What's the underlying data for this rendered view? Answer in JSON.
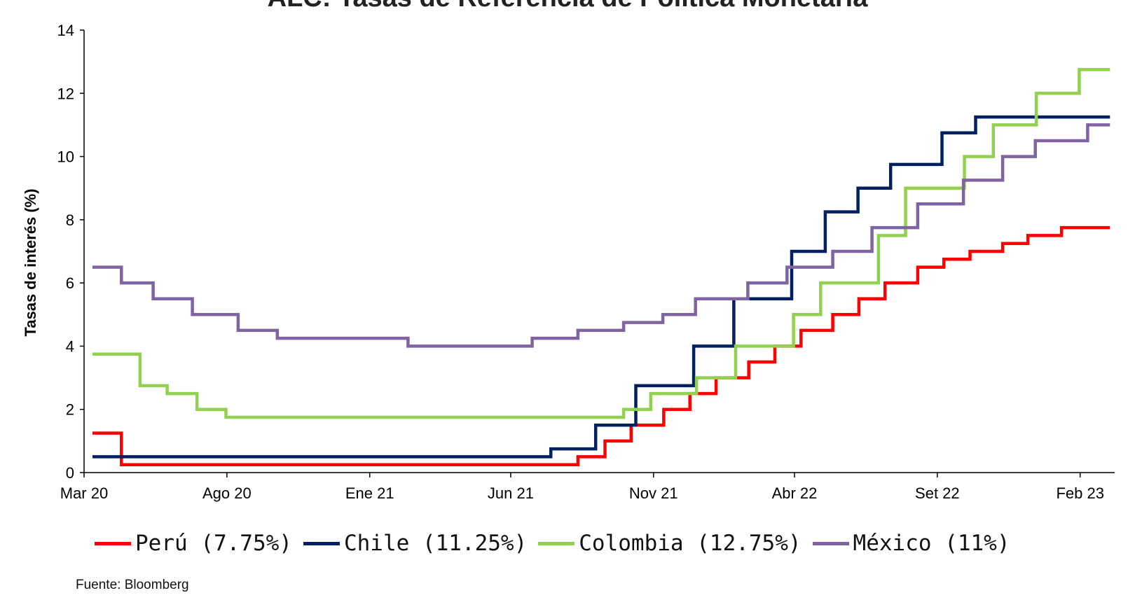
{
  "chart_data": {
    "type": "line",
    "title": "ALC: Tasas de Referencia de Política Monetaria",
    "ylabel": "Tasas de interés (%)",
    "xlabel": "",
    "ylim": [
      0,
      14
    ],
    "yticks": [
      0,
      2,
      4,
      6,
      8,
      10,
      12,
      14
    ],
    "xlim": [
      "2020-03-01",
      "2023-03-10"
    ],
    "xticks": [
      {
        "label": "Mar 20",
        "date": "2020-03-01"
      },
      {
        "label": "Ago 20",
        "date": "2020-08-01"
      },
      {
        "label": "Ene 21",
        "date": "2021-01-01"
      },
      {
        "label": "Jun 21",
        "date": "2021-06-01"
      },
      {
        "label": "Nov 21",
        "date": "2021-11-01"
      },
      {
        "label": "Abr 22",
        "date": "2022-04-01"
      },
      {
        "label": "Set 22",
        "date": "2022-09-01"
      },
      {
        "label": "Feb 23",
        "date": "2023-02-01"
      }
    ],
    "step": true,
    "grid": false,
    "legend_position": "bottom",
    "series": [
      {
        "name": "Perú (7.75%)",
        "color": "#ff0000",
        "points": [
          [
            "2020-03-10",
            1.25
          ],
          [
            "2020-04-10",
            0.25
          ],
          [
            "2021-08-12",
            0.5
          ],
          [
            "2021-09-10",
            1.0
          ],
          [
            "2021-10-08",
            1.5
          ],
          [
            "2021-11-12",
            2.0
          ],
          [
            "2021-12-10",
            2.5
          ],
          [
            "2022-01-07",
            3.0
          ],
          [
            "2022-02-11",
            3.5
          ],
          [
            "2022-03-11",
            4.0
          ],
          [
            "2022-04-08",
            4.5
          ],
          [
            "2022-05-12",
            5.0
          ],
          [
            "2022-06-09",
            5.5
          ],
          [
            "2022-07-07",
            6.0
          ],
          [
            "2022-08-11",
            6.5
          ],
          [
            "2022-09-08",
            6.75
          ],
          [
            "2022-10-06",
            7.0
          ],
          [
            "2022-11-10",
            7.25
          ],
          [
            "2022-12-07",
            7.5
          ],
          [
            "2023-01-12",
            7.75
          ],
          [
            "2023-03-05",
            7.75
          ]
        ]
      },
      {
        "name": "Chile (11.25%)",
        "color": "#002060",
        "points": [
          [
            "2020-03-10",
            0.5
          ],
          [
            "2021-07-14",
            0.75
          ],
          [
            "2021-08-31",
            1.5
          ],
          [
            "2021-10-13",
            2.75
          ],
          [
            "2021-12-14",
            4.0
          ],
          [
            "2022-01-26",
            5.5
          ],
          [
            "2022-03-29",
            7.0
          ],
          [
            "2022-05-04",
            8.25
          ],
          [
            "2022-06-08",
            9.0
          ],
          [
            "2022-07-13",
            9.75
          ],
          [
            "2022-09-06",
            10.75
          ],
          [
            "2022-10-12",
            11.25
          ],
          [
            "2023-03-05",
            11.25
          ]
        ]
      },
      {
        "name": "Colombia (12.75%)",
        "color": "#92d050",
        "points": [
          [
            "2020-03-10",
            3.75
          ],
          [
            "2020-04-30",
            2.75
          ],
          [
            "2020-05-29",
            2.5
          ],
          [
            "2020-06-30",
            2.25
          ],
          [
            "2020-06-30",
            2.0
          ],
          [
            "2020-07-31",
            1.75
          ],
          [
            "2021-09-30",
            2.0
          ],
          [
            "2021-10-29",
            2.5
          ],
          [
            "2021-12-17",
            3.0
          ],
          [
            "2022-01-28",
            4.0
          ],
          [
            "2022-03-31",
            5.0
          ],
          [
            "2022-04-29",
            6.0
          ],
          [
            "2022-06-30",
            7.5
          ],
          [
            "2022-07-29",
            9.0
          ],
          [
            "2022-09-30",
            10.0
          ],
          [
            "2022-10-31",
            11.0
          ],
          [
            "2022-12-16",
            12.0
          ],
          [
            "2023-01-31",
            12.75
          ],
          [
            "2023-03-05",
            12.75
          ]
        ]
      },
      {
        "name": "México (11%)",
        "color": "#8064a2",
        "points": [
          [
            "2020-03-10",
            6.5
          ],
          [
            "2020-04-10",
            6.0
          ],
          [
            "2020-05-14",
            5.5
          ],
          [
            "2020-06-25",
            5.0
          ],
          [
            "2020-08-13",
            4.5
          ],
          [
            "2020-09-24",
            4.25
          ],
          [
            "2021-02-11",
            4.0
          ],
          [
            "2021-06-24",
            4.25
          ],
          [
            "2021-08-12",
            4.5
          ],
          [
            "2021-09-30",
            4.75
          ],
          [
            "2021-11-11",
            5.0
          ],
          [
            "2021-12-16",
            5.5
          ],
          [
            "2022-02-10",
            6.0
          ],
          [
            "2022-03-24",
            6.5
          ],
          [
            "2022-05-12",
            7.0
          ],
          [
            "2022-06-23",
            7.75
          ],
          [
            "2022-08-11",
            8.5
          ],
          [
            "2022-09-29",
            9.25
          ],
          [
            "2022-11-10",
            10.0
          ],
          [
            "2022-12-15",
            10.5
          ],
          [
            "2023-02-09",
            11.0
          ],
          [
            "2023-03-05",
            11.0
          ]
        ]
      }
    ],
    "source": "Fuente: Bloomberg"
  }
}
